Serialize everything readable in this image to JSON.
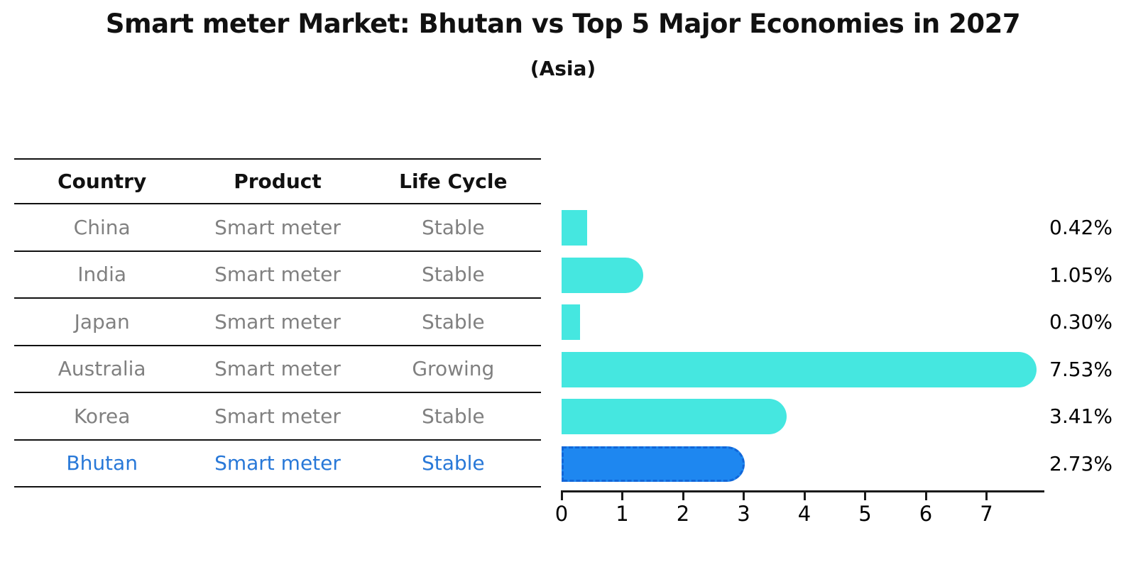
{
  "title": "Smart meter Market: Bhutan vs Top 5 Major Economies in 2027",
  "subtitle": "(Asia)",
  "table": {
    "headers": [
      "Country",
      "Product",
      "Life Cycle"
    ],
    "rows": [
      {
        "country": "China",
        "product": "Smart meter",
        "life_cycle": "Stable"
      },
      {
        "country": "India",
        "product": "Smart meter",
        "life_cycle": "Stable"
      },
      {
        "country": "Japan",
        "product": "Smart meter",
        "life_cycle": "Stable"
      },
      {
        "country": "Australia",
        "product": "Smart meter",
        "life_cycle": "Growing"
      },
      {
        "country": "Korea",
        "product": "Smart meter",
        "life_cycle": "Stable"
      },
      {
        "country": "Bhutan",
        "product": "Smart meter",
        "life_cycle": "Stable"
      }
    ]
  },
  "chart_data": {
    "type": "bar",
    "orientation": "horizontal",
    "title": "Smart meter Market: Bhutan vs Top 5 Major Economies in 2027",
    "subtitle": "(Asia)",
    "categories": [
      "China",
      "India",
      "Japan",
      "Australia",
      "Korea",
      "Bhutan"
    ],
    "values": [
      0.42,
      1.05,
      0.3,
      7.53,
      3.41,
      2.73
    ],
    "value_labels": [
      "0.42%",
      "1.05%",
      "0.30%",
      "7.53%",
      "3.41%",
      "2.73%"
    ],
    "x_ticks": [
      "0",
      "1",
      "2",
      "3",
      "4",
      "5",
      "6",
      "7"
    ],
    "xlim": [
      0,
      7.9
    ],
    "grid": false,
    "legend": false,
    "highlight_index": 5,
    "highlight_category": "Bhutan"
  },
  "colors": {
    "bar": "#45e7e0",
    "highlight_bar": "#1e87f0",
    "highlight_border": "#1166d8",
    "highlight_text": "#2878d8",
    "table_text": "#808080",
    "heading_text": "#111111",
    "axis": "#1a1a1a"
  }
}
